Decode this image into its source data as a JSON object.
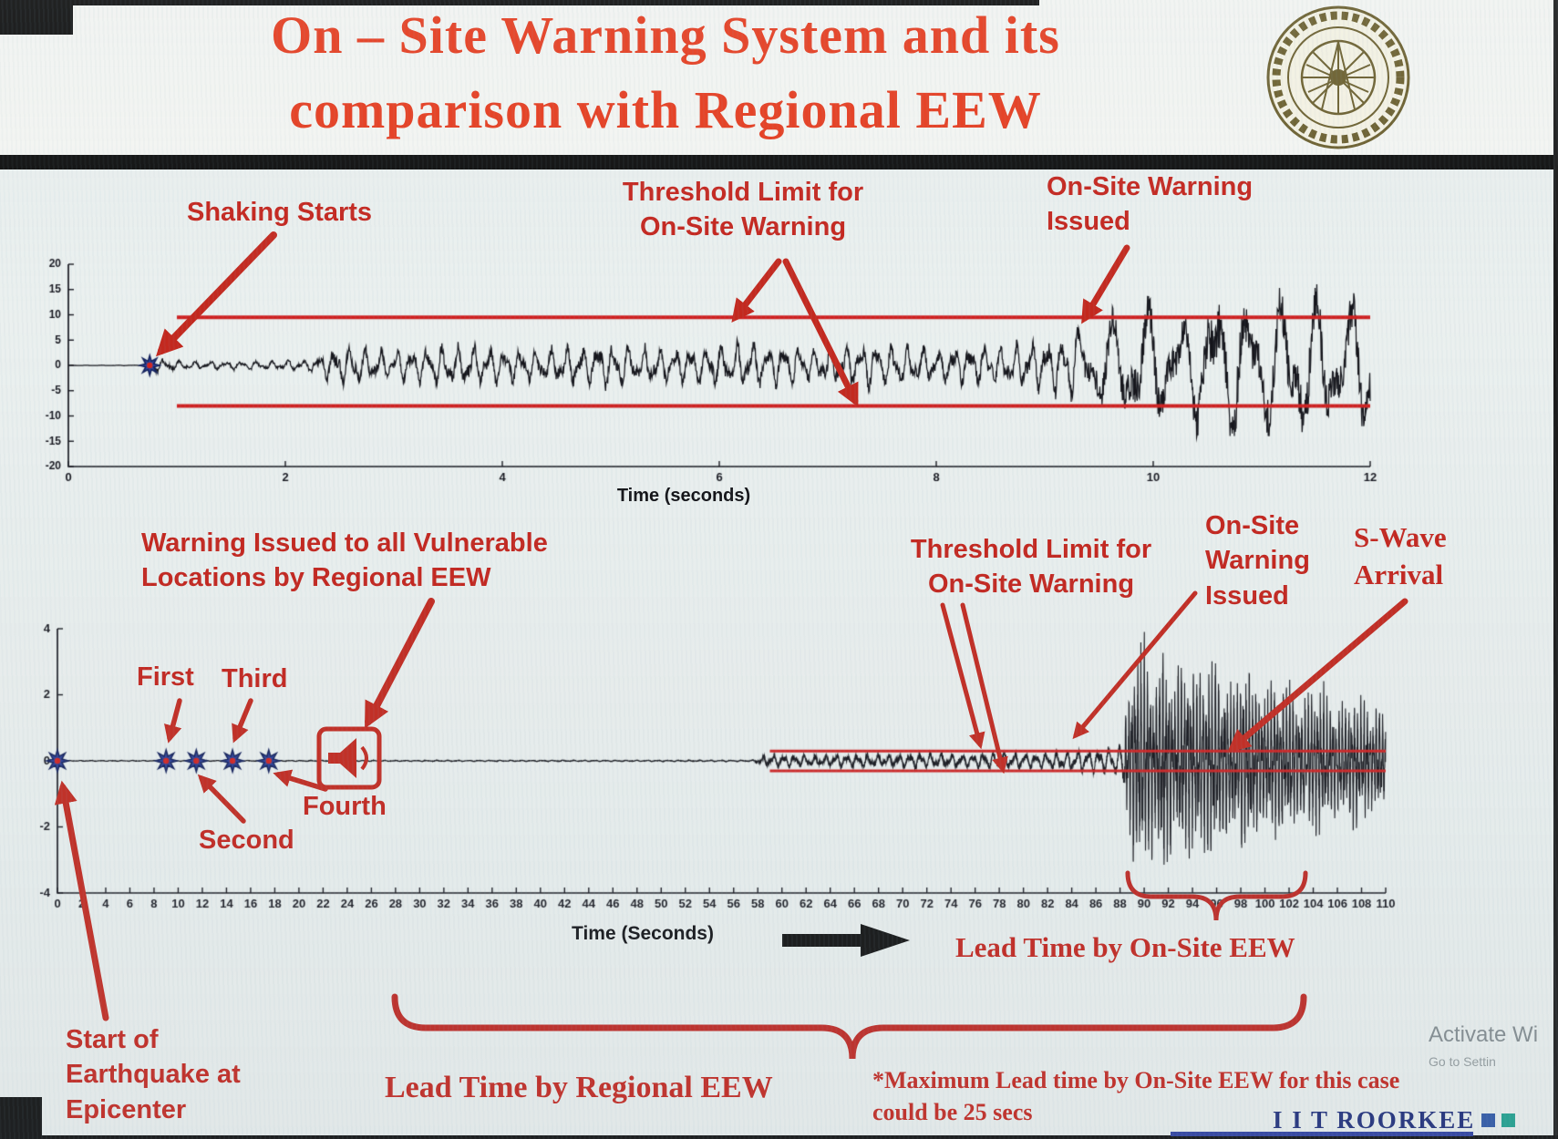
{
  "slide": {
    "title": [
      "On – Site Warning System and its",
      "comparison with Regional EEW"
    ],
    "logo_icon": "iit-roorkee-emblem",
    "colors": {
      "title_red": "#e7391b",
      "annotation_red": "#c4231b",
      "threshold_red": "#cf2020",
      "waveform": "#15151b",
      "star_blue": "#2b3f98",
      "brand_navy": "#1b2a78"
    },
    "footer": {
      "brand": "I I T ROORKEE",
      "watermark": [
        "Activate Wi",
        "Go to Settin"
      ]
    }
  },
  "chart_data": [
    {
      "type": "line",
      "name": "on-site-accelerogram",
      "xlabel": "Time (seconds)",
      "xlim": [
        0,
        12
      ],
      "xticks": [
        0,
        2,
        4,
        6,
        8,
        10,
        12
      ],
      "ylim": [
        -20,
        20
      ],
      "yticks": [
        -20,
        -15,
        -10,
        -5,
        0,
        5,
        10,
        15,
        20
      ],
      "grid": false,
      "threshold": {
        "upper": 9.5,
        "lower": -8,
        "start_time": 1.0,
        "label": [
          "Threshold Limit for",
          "On-Site Warning"
        ]
      },
      "events": {
        "shaking_starts": {
          "time": 0.75,
          "label": "Shaking Starts"
        },
        "warning_issued": {
          "time": 9.3,
          "label": [
            "On-Site Warning",
            "Issued"
          ]
        }
      },
      "signal_freq": {
        "base": 7.0,
        "late_start": 9.3,
        "late": 3.2
      },
      "signal_envelope": [
        [
          0,
          0.02
        ],
        [
          0.7,
          0.06
        ],
        [
          0.78,
          1.4
        ],
        [
          1.1,
          0.8
        ],
        [
          2.2,
          1.0
        ],
        [
          2.5,
          3.9
        ],
        [
          3.0,
          2.9
        ],
        [
          3.6,
          4.3
        ],
        [
          4.2,
          3.0
        ],
        [
          5.0,
          4.3
        ],
        [
          5.6,
          3.3
        ],
        [
          6.2,
          4.6
        ],
        [
          6.8,
          3.4
        ],
        [
          7.4,
          4.4
        ],
        [
          8.0,
          3.2
        ],
        [
          8.7,
          4.3
        ],
        [
          9.1,
          5.6
        ],
        [
          9.5,
          8.5
        ],
        [
          9.9,
          12.5
        ],
        [
          10.25,
          9.5
        ],
        [
          10.6,
          16.5
        ],
        [
          11.0,
          12.0
        ],
        [
          11.4,
          16.0
        ],
        [
          11.7,
          11.0
        ],
        [
          12,
          14.5
        ]
      ]
    },
    {
      "type": "line",
      "name": "regional-vs-onsite-comparison",
      "xlabel": "Time (Seconds)",
      "xlim": [
        0,
        110
      ],
      "xtick_step": 2,
      "ylim": [
        -4,
        4
      ],
      "yticks": [
        -4,
        -2,
        0,
        2,
        4
      ],
      "grid": false,
      "threshold": {
        "upper": 0.3,
        "lower": -0.3,
        "start_time": 59,
        "label": [
          "Threshold Limit for",
          "On-Site Warning"
        ]
      },
      "p_wave_detections": [
        {
          "time": 0,
          "label": [
            "Start of",
            "Earthquake at",
            "Epicenter"
          ]
        },
        {
          "time": 9,
          "label": "First"
        },
        {
          "time": 11.5,
          "label": "Second"
        },
        {
          "time": 14.5,
          "label": "Third"
        },
        {
          "time": 17.5,
          "label": "Fourth"
        }
      ],
      "events": {
        "regional_warning": {
          "time": 23.5,
          "label": [
            "Warning Issued to all Vulnerable",
            "Locations by Regional EEW"
          ]
        },
        "onsite_warning": {
          "time": 82,
          "label": [
            "On-Site",
            "Warning",
            "Issued"
          ]
        },
        "s_wave": {
          "time": 95,
          "label": [
            "S-Wave",
            "Arrival"
          ]
        }
      },
      "lead_times": {
        "onsite": "Lead Time by On-Site EEW",
        "regional": "Lead Time by Regional EEW",
        "note": [
          "*Maximum Lead time by On-Site EEW for this case",
          "could be 25 secs"
        ]
      },
      "signal_freq": {
        "base": 1.15,
        "late_start": 88.3,
        "late": 3.9
      },
      "signal_envelope": [
        [
          0,
          0.012
        ],
        [
          57.5,
          0.02
        ],
        [
          58.5,
          0.14
        ],
        [
          60,
          0.2
        ],
        [
          63,
          0.15
        ],
        [
          66,
          0.22
        ],
        [
          69,
          0.17
        ],
        [
          72,
          0.24
        ],
        [
          75,
          0.19
        ],
        [
          78,
          0.26
        ],
        [
          81,
          0.22
        ],
        [
          84,
          0.3
        ],
        [
          86,
          0.34
        ],
        [
          88,
          0.45
        ],
        [
          88.6,
          1.6
        ],
        [
          89.2,
          2.9
        ],
        [
          90,
          3.4
        ],
        [
          90.8,
          2.3
        ],
        [
          91.6,
          3.2
        ],
        [
          92.5,
          2.1
        ],
        [
          93.5,
          3.0
        ],
        [
          94.5,
          2.2
        ],
        [
          95.5,
          2.8
        ],
        [
          97,
          2.0
        ],
        [
          98.5,
          2.5
        ],
        [
          100,
          1.9
        ],
        [
          101.5,
          2.3
        ],
        [
          103,
          1.7
        ],
        [
          104.5,
          2.1
        ],
        [
          106,
          1.5
        ],
        [
          107.5,
          1.9
        ],
        [
          109,
          1.4
        ],
        [
          110,
          1.6
        ]
      ]
    }
  ]
}
